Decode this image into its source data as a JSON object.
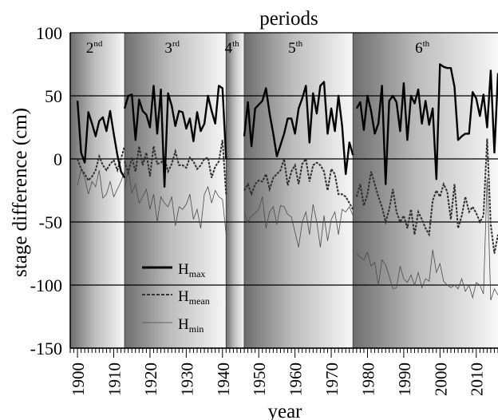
{
  "chart_data": {
    "type": "line",
    "title": "periods",
    "xlabel": "year",
    "ylabel": "stage difference (cm)",
    "xlim": [
      1898,
      2016
    ],
    "ylim": [
      -150,
      100
    ],
    "x_ticks": [
      "1900",
      "1910",
      "1920",
      "1930",
      "1940",
      "1950",
      "1960",
      "1970",
      "1980",
      "1990",
      "2000",
      "2010"
    ],
    "y_ticks": [
      "100",
      "50",
      "0",
      "-50",
      "-100",
      "-150"
    ],
    "grid_y": true,
    "legend_position": "lower-left",
    "periods": [
      {
        "base": "2",
        "sup": "nd",
        "start": 1898,
        "end": 1913
      },
      {
        "base": "3",
        "sup": "rd",
        "start": 1913,
        "end": 1941
      },
      {
        "base": "4",
        "sup": "th",
        "start": 1941,
        "end": 1946
      },
      {
        "base": "5",
        "sup": "th",
        "start": 1946,
        "end": 1976
      },
      {
        "base": "6",
        "sup": "th",
        "start": 1976,
        "end": 2016
      }
    ],
    "series": [
      {
        "name": "H",
        "sub": "max",
        "style": "solid-thick",
        "segments": [
          {
            "x": [
              1900,
              1901,
              1902,
              1903,
              1904,
              1905,
              1906,
              1907,
              1908,
              1909,
              1910,
              1911,
              1912,
              1913
            ],
            "y": [
              46,
              5,
              -3,
              37,
              28,
              18,
              30,
              33,
              22,
              38,
              20,
              3,
              -10,
              -15
            ]
          },
          {
            "x": [
              1913,
              1914,
              1915,
              1916,
              1917,
              1918,
              1919,
              1920,
              1921,
              1922,
              1923,
              1924,
              1925,
              1926,
              1927,
              1928,
              1929,
              1930,
              1931,
              1932,
              1933,
              1934,
              1935,
              1936,
              1937,
              1938,
              1939,
              1940,
              1941
            ],
            "y": [
              40,
              50,
              51,
              15,
              47,
              38,
              35,
              25,
              58,
              20,
              55,
              -22,
              52,
              42,
              26,
              38,
              37,
              24,
              32,
              14,
              37,
              22,
              28,
              50,
              38,
              28,
              58,
              56,
              0
            ]
          },
          {
            "x": [
              1946,
              1947,
              1948,
              1949,
              1950,
              1951,
              1952,
              1953,
              1954,
              1955,
              1956,
              1957,
              1958,
              1959,
              1960,
              1961,
              1962,
              1963,
              1964,
              1965,
              1966,
              1967,
              1968,
              1969,
              1970,
              1971,
              1972,
              1973,
              1974,
              1975,
              1976
            ],
            "y": [
              18,
              45,
              10,
              40,
              43,
              46,
              56,
              36,
              20,
              2,
              11,
              20,
              32,
              32,
              20,
              40,
              48,
              58,
              13,
              52,
              36,
              58,
              61,
              20,
              40,
              22,
              50,
              26,
              -12,
              13,
              3
            ]
          },
          {
            "x": [
              1977,
              1978,
              1979,
              1980,
              1981,
              1982,
              1983,
              1984,
              1985,
              1986,
              1987,
              1988,
              1989,
              1990,
              1991,
              1992,
              1993,
              1994,
              1995,
              1996,
              1997,
              1998,
              1999,
              2000,
              2001,
              2002,
              2003,
              2004,
              2005,
              2006,
              2007,
              2008,
              2009,
              2010,
              2011,
              2012,
              2013,
              2014,
              2015,
              2016
            ],
            "y": [
              40,
              45,
              23,
              50,
              38,
              20,
              28,
              58,
              -20,
              46,
              50,
              45,
              22,
              60,
              15,
              50,
              44,
              55,
              28,
              46,
              27,
              40,
              -16,
              75,
              73,
              72,
              72,
              57,
              15,
              18,
              20,
              20,
              53,
              48,
              34,
              51,
              25,
              70,
              5,
              68
            ]
          }
        ]
      },
      {
        "name": "H",
        "sub": "mean",
        "style": "dashed-dotted",
        "segments": [
          {
            "x": [
              1900,
              1901,
              1902,
              1903,
              1904,
              1905,
              1906,
              1907,
              1908,
              1909,
              1910,
              1911,
              1912,
              1913
            ],
            "y": [
              0,
              -8,
              -12,
              -17,
              -14,
              -9,
              2,
              -5,
              -9,
              -4,
              -1,
              -9,
              0,
              10
            ]
          },
          {
            "x": [
              1913,
              1914,
              1915,
              1916,
              1917,
              1918,
              1919,
              1920,
              1921,
              1922,
              1923,
              1924,
              1925,
              1926,
              1927,
              1928,
              1929,
              1930,
              1931,
              1932,
              1933,
              1934,
              1935,
              1936,
              1937,
              1938,
              1939,
              1940,
              1941
            ],
            "y": [
              -2,
              -11,
              1,
              -10,
              10,
              -5,
              5,
              -14,
              10,
              -4,
              -3,
              0,
              -10,
              -4,
              6,
              -5,
              -5,
              -7,
              1,
              -2,
              -8,
              -5,
              0,
              1,
              -15,
              -6,
              -2,
              15,
              -28
            ]
          },
          {
            "x": [
              1946,
              1947,
              1948,
              1949,
              1950,
              1951,
              1952,
              1953,
              1954,
              1955,
              1956,
              1957,
              1958,
              1959,
              1960,
              1961,
              1962,
              1963,
              1964,
              1965,
              1966,
              1967,
              1968,
              1969,
              1970,
              1971,
              1972,
              1973,
              1974,
              1975,
              1976
            ],
            "y": [
              -25,
              -20,
              -28,
              -20,
              -17,
              -18,
              -12,
              -24,
              -15,
              -12,
              -9,
              0,
              -21,
              -10,
              -5,
              -20,
              -4,
              0,
              -18,
              -5,
              -3,
              -5,
              -10,
              -25,
              -8,
              -12,
              -28,
              -28,
              -30,
              -35,
              -40
            ]
          },
          {
            "x": [
              1977,
              1978,
              1979,
              1980,
              1981,
              1982,
              1983,
              1984,
              1985,
              1986,
              1987,
              1988,
              1989,
              1990,
              1991,
              1992,
              1993,
              1994,
              1995,
              1996,
              1997,
              1998,
              1999,
              2000,
              2001,
              2002,
              2003,
              2004,
              2005,
              2006,
              2007,
              2008,
              2009,
              2010,
              2011,
              2012,
              2013,
              2014,
              2015,
              2016
            ],
            "y": [
              -30,
              -20,
              -37,
              -28,
              -10,
              -20,
              -30,
              -38,
              -50,
              -40,
              -24,
              -42,
              -50,
              -45,
              -55,
              -40,
              -60,
              -42,
              -48,
              -55,
              -60,
              -33,
              -25,
              -30,
              -20,
              -26,
              -48,
              -20,
              -55,
              -45,
              -30,
              -42,
              -38,
              -43,
              -50,
              -45,
              16,
              -52,
              -75,
              -60
            ]
          }
        ]
      },
      {
        "name": "H",
        "sub": "min",
        "style": "solid-thin",
        "segments": [
          {
            "x": [
              1900,
              1901,
              1902,
              1903,
              1904,
              1905,
              1906,
              1907,
              1908,
              1909,
              1910,
              1911,
              1912,
              1913
            ],
            "y": [
              -21,
              -8,
              -15,
              -28,
              -18,
              -22,
              -9,
              -31,
              -28,
              -18,
              -30,
              -24,
              -18,
              -10
            ]
          },
          {
            "x": [
              1913,
              1914,
              1915,
              1916,
              1917,
              1918,
              1919,
              1920,
              1921,
              1922,
              1923,
              1924,
              1925,
              1926,
              1927,
              1928,
              1929,
              1930,
              1931,
              1932,
              1933,
              1934,
              1935,
              1936,
              1937,
              1938,
              1939,
              1940,
              1941
            ],
            "y": [
              -25,
              -8,
              -27,
              -20,
              -35,
              -30,
              -24,
              -40,
              -28,
              -50,
              -30,
              -35,
              -38,
              -30,
              -53,
              -38,
              -40,
              -36,
              -28,
              -48,
              -40,
              -55,
              -28,
              -22,
              -35,
              -25,
              -30,
              -32,
              -60
            ]
          },
          {
            "x": [
              1946,
              1947,
              1948,
              1949,
              1950,
              1951,
              1952,
              1953,
              1954,
              1955,
              1956,
              1957,
              1958,
              1959,
              1960,
              1961,
              1962,
              1963,
              1964,
              1965,
              1966,
              1967,
              1968,
              1969,
              1970,
              1971,
              1972,
              1973,
              1974,
              1975,
              1976
            ],
            "y": [
              -42,
              -50,
              -45,
              -43,
              -40,
              -30,
              -55,
              -42,
              -38,
              -52,
              -37,
              -38,
              -44,
              -46,
              -58,
              -70,
              -50,
              -42,
              -60,
              -36,
              -50,
              -70,
              -45,
              -65,
              -48,
              -42,
              -60,
              -40,
              -42,
              -38,
              -45
            ]
          },
          {
            "x": [
              1977,
              1978,
              1979,
              1980,
              1981,
              1982,
              1983,
              1984,
              1985,
              1986,
              1987,
              1988,
              1989,
              1990,
              1991,
              1992,
              1993,
              1994,
              1995,
              1996,
              1997,
              1998,
              1999,
              2000,
              2001,
              2002,
              2003,
              2004,
              2005,
              2006,
              2007,
              2008,
              2009,
              2010,
              2011,
              2012,
              2013,
              2014,
              2015,
              2016
            ],
            "y": [
              -75,
              -78,
              -80,
              -74,
              -85,
              -82,
              -100,
              -80,
              -84,
              -93,
              -103,
              -102,
              -85,
              -95,
              -98,
              -92,
              -100,
              -90,
              -102,
              -95,
              -97,
              -72,
              -90,
              -83,
              -97,
              -100,
              -102,
              -100,
              -103,
              -95,
              -105,
              -100,
              -110,
              -98,
              -100,
              -107,
              -15,
              -112,
              -103,
              -108
            ]
          }
        ]
      }
    ]
  }
}
